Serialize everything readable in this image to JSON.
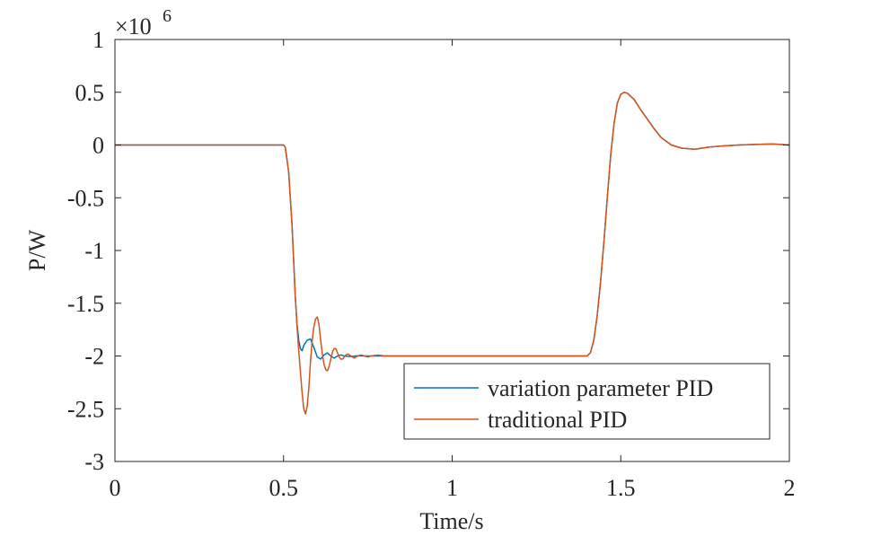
{
  "chart_data": {
    "type": "line",
    "title": "",
    "xlabel": "Time/s",
    "ylabel": "P/W",
    "xlim": [
      0,
      2
    ],
    "ylim": [
      -3,
      1
    ],
    "y_exponent": {
      "base": "×10",
      "power": "6"
    },
    "x_ticks": [
      0,
      0.5,
      1,
      1.5,
      2
    ],
    "x_tick_labels": [
      "0",
      "0.5",
      "1",
      "1.5",
      "2"
    ],
    "y_ticks": [
      1,
      0.5,
      0,
      -0.5,
      -1,
      -1.5,
      -2,
      -2.5,
      -3
    ],
    "y_tick_labels": [
      "1",
      "0.5",
      "0",
      "-0.5",
      "-1",
      "-1.5",
      "-2",
      "-2.5",
      "-3"
    ],
    "grid": false,
    "legend_position": "bottom-right",
    "series": [
      {
        "name": "variation parameter PID",
        "color": "#0072bd",
        "x": [
          0,
          0.5,
          0.505,
          0.515,
          0.525,
          0.53,
          0.535,
          0.54,
          0.545,
          0.55,
          0.555,
          0.56,
          0.57,
          0.58,
          0.59,
          0.6,
          0.61,
          0.62,
          0.63,
          0.64,
          0.65,
          0.66,
          0.67,
          0.68,
          0.7,
          0.72,
          0.75,
          0.8,
          1.0,
          1.2,
          1.4,
          1.41,
          1.42,
          1.43,
          1.44,
          1.45,
          1.46,
          1.47,
          1.48,
          1.49,
          1.5,
          1.51,
          1.52,
          1.53,
          1.54,
          1.55,
          1.56,
          1.58,
          1.6,
          1.62,
          1.65,
          1.68,
          1.72,
          1.76,
          1.8,
          1.85,
          1.9,
          1.95,
          2.0
        ],
        "y": [
          0,
          0,
          -0.02,
          -0.25,
          -0.75,
          -1.1,
          -1.45,
          -1.7,
          -1.85,
          -1.93,
          -1.95,
          -1.9,
          -1.85,
          -1.84,
          -1.92,
          -2.01,
          -2.03,
          -1.99,
          -1.97,
          -2.0,
          -2.02,
          -2.0,
          -1.99,
          -2.0,
          -2.005,
          -1.998,
          -2.0,
          -2.0,
          -2.0,
          -2.0,
          -2.0,
          -1.97,
          -1.85,
          -1.62,
          -1.3,
          -0.92,
          -0.5,
          -0.1,
          0.2,
          0.4,
          0.48,
          0.5,
          0.49,
          0.46,
          0.43,
          0.38,
          0.33,
          0.24,
          0.15,
          0.07,
          0.0,
          -0.03,
          -0.04,
          -0.02,
          -0.01,
          0.0,
          0.005,
          0.01,
          0.0
        ]
      },
      {
        "name": "traditional PID",
        "color": "#d95319",
        "x": [
          0,
          0.5,
          0.505,
          0.515,
          0.525,
          0.53,
          0.535,
          0.54,
          0.545,
          0.55,
          0.555,
          0.56,
          0.565,
          0.57,
          0.575,
          0.58,
          0.585,
          0.59,
          0.595,
          0.6,
          0.605,
          0.61,
          0.615,
          0.62,
          0.625,
          0.63,
          0.635,
          0.64,
          0.645,
          0.65,
          0.655,
          0.66,
          0.665,
          0.67,
          0.675,
          0.68,
          0.685,
          0.69,
          0.7,
          0.71,
          0.72,
          0.73,
          0.74,
          0.75,
          0.76,
          0.78,
          0.8,
          0.85,
          1.0,
          1.2,
          1.4,
          1.41,
          1.42,
          1.43,
          1.44,
          1.45,
          1.46,
          1.47,
          1.48,
          1.49,
          1.5,
          1.51,
          1.52,
          1.53,
          1.54,
          1.55,
          1.56,
          1.58,
          1.6,
          1.62,
          1.65,
          1.68,
          1.72,
          1.76,
          1.8,
          1.85,
          1.9,
          1.95,
          2.0
        ],
        "y": [
          0,
          0,
          -0.02,
          -0.25,
          -0.75,
          -1.1,
          -1.45,
          -1.72,
          -1.95,
          -2.15,
          -2.35,
          -2.5,
          -2.55,
          -2.48,
          -2.3,
          -2.05,
          -1.85,
          -1.72,
          -1.65,
          -1.63,
          -1.7,
          -1.85,
          -1.98,
          -2.08,
          -2.13,
          -2.14,
          -2.1,
          -2.03,
          -1.96,
          -1.93,
          -1.93,
          -1.97,
          -2.01,
          -2.03,
          -2.03,
          -2.01,
          -1.99,
          -1.98,
          -2.0,
          -2.02,
          -2.0,
          -1.99,
          -2.0,
          -2.01,
          -2.0,
          -1.99,
          -2.0,
          -2.0,
          -2.0,
          -2.0,
          -2.0,
          -1.97,
          -1.85,
          -1.62,
          -1.3,
          -0.92,
          -0.5,
          -0.1,
          0.2,
          0.4,
          0.48,
          0.5,
          0.49,
          0.46,
          0.43,
          0.38,
          0.33,
          0.24,
          0.15,
          0.07,
          0.0,
          -0.03,
          -0.04,
          -0.02,
          -0.01,
          0.0,
          0.005,
          0.01,
          0.0
        ]
      }
    ]
  }
}
